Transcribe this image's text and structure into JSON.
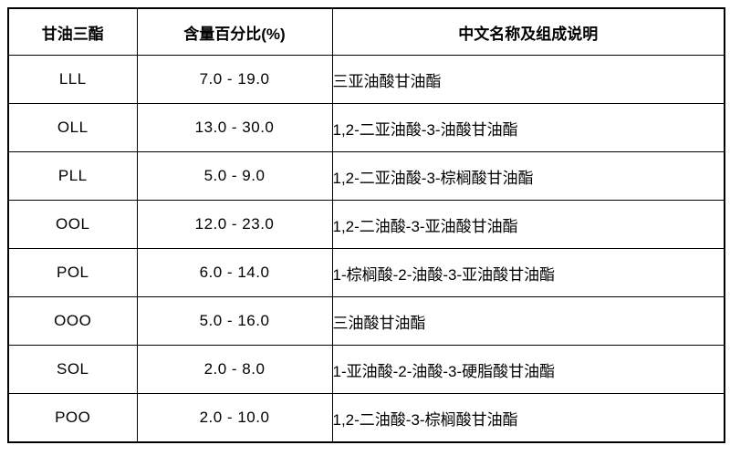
{
  "table": {
    "columns": [
      "甘油三酯",
      "含量百分比(%)",
      "中文名称及组成说明"
    ],
    "rows": [
      {
        "code": "LLL",
        "range": "7.0 - 19.0",
        "name": "三亚油酸甘油酯"
      },
      {
        "code": "OLL",
        "range": "13.0 - 30.0",
        "name": "1,2-二亚油酸-3-油酸甘油酯"
      },
      {
        "code": "PLL",
        "range": "5.0 - 9.0",
        "name": "1,2-二亚油酸-3-棕榈酸甘油酯"
      },
      {
        "code": "OOL",
        "range": "12.0 - 23.0",
        "name": "1,2-二油酸-3-亚油酸甘油酯"
      },
      {
        "code": "POL",
        "range": "6.0 - 14.0",
        "name": "1-棕榈酸-2-油酸-3-亚油酸甘油酯"
      },
      {
        "code": "OOO",
        "range": "5.0 - 16.0",
        "name": "三油酸甘油酯"
      },
      {
        "code": "SOL",
        "range": "2.0 - 8.0",
        "name": "1-亚油酸-2-油酸-3-硬脂酸甘油酯"
      },
      {
        "code": "POO",
        "range": "2.0 - 10.0",
        "name": "1,2-二油酸-3-棕榈酸甘油酯"
      }
    ]
  },
  "colors": {
    "border": "#000000",
    "text": "#000000",
    "background": "#ffffff"
  }
}
